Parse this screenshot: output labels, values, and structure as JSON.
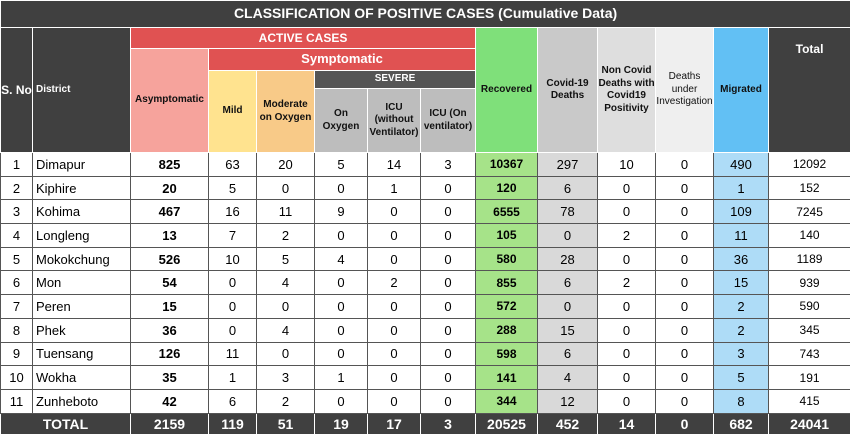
{
  "table": {
    "title": "CLASSIFICATION OF POSITIVE CASES (Cumulative Data)",
    "headers": {
      "sno": "S. No",
      "district": "District",
      "active_cases": "ACTIVE CASES",
      "asymptomatic": "Asymptomatic",
      "symptomatic": "Symptomatic",
      "mild": "Mild",
      "moderate": "Moderate on Oxygen",
      "severe": "SEVERE",
      "on_oxygen": "On Oxygen",
      "icu_without": "ICU (without Ventilator)",
      "icu_on": "ICU (On ventilator)",
      "recovered": "Recovered",
      "covid_deaths": "Covid-19 Deaths",
      "non_covid_deaths": "Non Covid Deaths with Covid19 Positivity",
      "deaths_under_investigation": "Deaths under Investigation",
      "migrated": "Migrated",
      "total": "Total"
    },
    "rows": [
      {
        "sno": 1,
        "district": "Dimapur",
        "values": [
          825,
          63,
          20,
          5,
          14,
          3,
          10367,
          297,
          10,
          0,
          490,
          12092
        ]
      },
      {
        "sno": 2,
        "district": "Kiphire",
        "values": [
          20,
          5,
          0,
          0,
          1,
          0,
          120,
          6,
          0,
          0,
          1,
          152
        ]
      },
      {
        "sno": 3,
        "district": "Kohima",
        "values": [
          467,
          16,
          11,
          9,
          0,
          0,
          6555,
          78,
          0,
          0,
          109,
          7245
        ]
      },
      {
        "sno": 4,
        "district": "Longleng",
        "values": [
          13,
          7,
          2,
          0,
          0,
          0,
          105,
          0,
          2,
          0,
          11,
          140
        ]
      },
      {
        "sno": 5,
        "district": "Mokokchung",
        "values": [
          526,
          10,
          5,
          4,
          0,
          0,
          580,
          28,
          0,
          0,
          36,
          1189
        ]
      },
      {
        "sno": 6,
        "district": "Mon",
        "values": [
          54,
          0,
          4,
          0,
          2,
          0,
          855,
          6,
          2,
          0,
          15,
          939
        ]
      },
      {
        "sno": 7,
        "district": "Peren",
        "values": [
          15,
          0,
          0,
          0,
          0,
          0,
          572,
          0,
          0,
          0,
          2,
          590
        ]
      },
      {
        "sno": 8,
        "district": "Phek",
        "values": [
          36,
          0,
          4,
          0,
          0,
          0,
          288,
          15,
          0,
          0,
          2,
          345
        ]
      },
      {
        "sno": 9,
        "district": "Tuensang",
        "values": [
          126,
          11,
          0,
          0,
          0,
          0,
          598,
          6,
          0,
          0,
          3,
          743
        ]
      },
      {
        "sno": 10,
        "district": "Wokha",
        "values": [
          35,
          1,
          3,
          1,
          0,
          0,
          141,
          4,
          0,
          0,
          5,
          191
        ]
      },
      {
        "sno": 11,
        "district": "Zunheboto",
        "values": [
          42,
          6,
          2,
          0,
          0,
          0,
          344,
          12,
          0,
          0,
          8,
          415
        ]
      }
    ],
    "total": {
      "label": "TOTAL",
      "values": [
        2159,
        119,
        51,
        19,
        17,
        3,
        20525,
        452,
        14,
        0,
        682,
        24041
      ]
    }
  }
}
